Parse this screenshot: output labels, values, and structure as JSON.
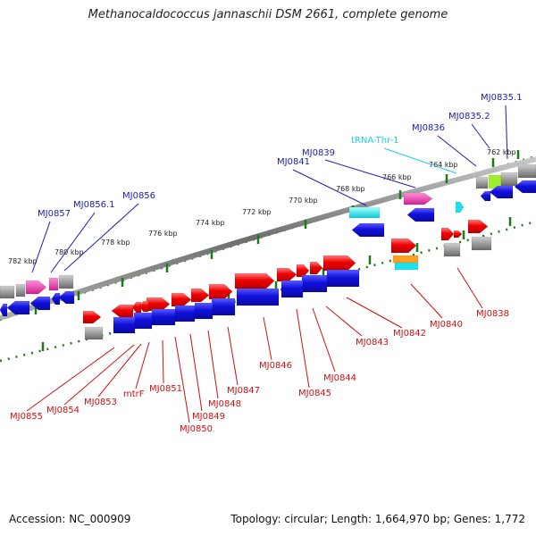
{
  "title": "Methanocaldococcus jannaschii DSM 2661, complete genome",
  "footer": {
    "accession": "Accession: NC_000909",
    "topology": "Topology: circular; Length: 1,664,970 bp; Genes: 1,772"
  },
  "colors": {
    "forward_gene": "#f20000",
    "reverse_gene": "#1a1ae0",
    "pseudo": "#8a8a8a",
    "magenta": "#f037b0",
    "cyan": "#1ee0ee",
    "orange": "#ffa020",
    "lime": "#a0ee30",
    "label_blue": "#1c1cb0",
    "label_red": "#cc1111",
    "label_cyan": "#22c8e8",
    "tick_green": "#1a7a1a"
  },
  "scale_labels": [
    "762 kbp",
    "764 kbp",
    "766 kbp",
    "768 kbp",
    "770 kbp",
    "772 kbp",
    "774 kbp",
    "776 kbp",
    "778 kbp",
    "780 kbp",
    "782 kbp"
  ],
  "top_labels": [
    {
      "text": "MJ0835.1",
      "color": "blue"
    },
    {
      "text": "MJ0835.2",
      "color": "blue"
    },
    {
      "text": "MJ0836",
      "color": "blue"
    },
    {
      "text": "tRNA-Thr-1",
      "color": "cyan"
    },
    {
      "text": "MJ0839",
      "color": "blue"
    },
    {
      "text": "MJ0841",
      "color": "blue"
    },
    {
      "text": "MJ0856",
      "color": "blue"
    },
    {
      "text": "MJ0856.1",
      "color": "blue"
    },
    {
      "text": "MJ0857",
      "color": "blue"
    }
  ],
  "bottom_labels": [
    {
      "text": "MJ0838"
    },
    {
      "text": "MJ0840"
    },
    {
      "text": "MJ0842"
    },
    {
      "text": "MJ0843"
    },
    {
      "text": "MJ0844"
    },
    {
      "text": "MJ0845"
    },
    {
      "text": "MJ0846"
    },
    {
      "text": "MJ0847"
    },
    {
      "text": "MJ0848"
    },
    {
      "text": "MJ0849"
    },
    {
      "text": "MJ0850"
    },
    {
      "text": "MJ0851"
    },
    {
      "text": "mtrF"
    },
    {
      "text": "MJ0853"
    },
    {
      "text": "MJ0854"
    },
    {
      "text": "MJ0855"
    }
  ]
}
